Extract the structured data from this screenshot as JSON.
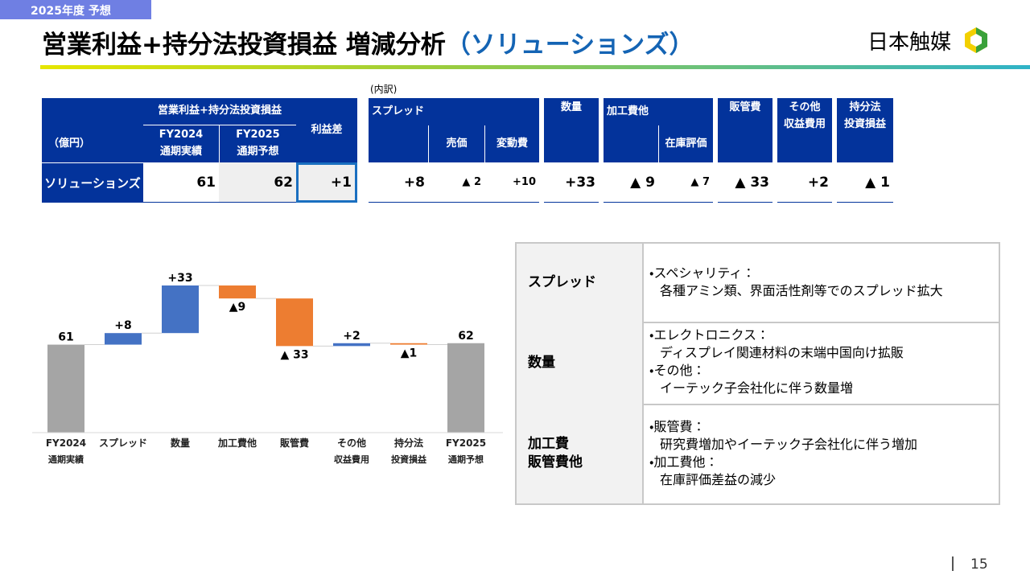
{
  "header": {
    "tag": "2025年度 予想",
    "title": "営業利益+持分法投資損益 増減分析",
    "subtitle": "（ソリューションズ）",
    "logo": "日本触媒"
  },
  "top_table": {
    "note": "(内訳)",
    "unit": "（億円）",
    "group": "営業利益+持分法投資損益",
    "headers": [
      "FY2024\n通期実績",
      "FY2025\n通期予想",
      "利益差",
      "スプレッド",
      "売価",
      "変動費",
      "数量",
      "加工費他",
      "在庫評価",
      "販管費",
      "その他\n収益費用",
      "持分法\n投資損益"
    ],
    "row_label": "ソリューションズ",
    "values": [
      "61",
      "62",
      "+1",
      "+8",
      "▲ 2",
      "+10",
      "+33",
      "▲ 9",
      "▲ 7",
      "▲ 33",
      "+2",
      "▲ 1"
    ]
  },
  "chart_data": {
    "type": "waterfall",
    "categories": [
      "FY2024\n通期実績",
      "スプレッド",
      "数量",
      "加工費他",
      "販管費",
      "その他\n収益費用",
      "持分法\n投資損益",
      "FY2025\n通期予想"
    ],
    "values": [
      61,
      8,
      33,
      -9,
      -33,
      2,
      -1,
      62
    ],
    "value_labels": [
      "61",
      "+8",
      "+33",
      "▲9",
      "▲ 33",
      "+2",
      "▲1",
      "62"
    ],
    "colors": {
      "total": "#a5a5a5",
      "increase": "#4472c4",
      "decrease": "#ed7d31"
    }
  },
  "notes_table": {
    "rows": [
      {
        "label": "スプレッド",
        "items": [
          [
            "・スペシャリティ：",
            "各種アミン類、界面活性剤等でのスプレッド拡大"
          ]
        ]
      },
      {
        "label": "数量",
        "items": [
          [
            "・エレクトロニクス：",
            "ディスプレイ関連材料の末端中国向け拡販"
          ],
          [
            "・その他：",
            "イーテック子会社化に伴う数量増"
          ]
        ]
      },
      {
        "label": "加工費\n販管費他",
        "items": [
          [
            "・販管費：",
            "研究費増加やイーテック子会社化に伴う増加"
          ],
          [
            "・加工費他：",
            "在庫評価差益の減少"
          ]
        ]
      }
    ]
  },
  "footer": {
    "page": "15"
  }
}
